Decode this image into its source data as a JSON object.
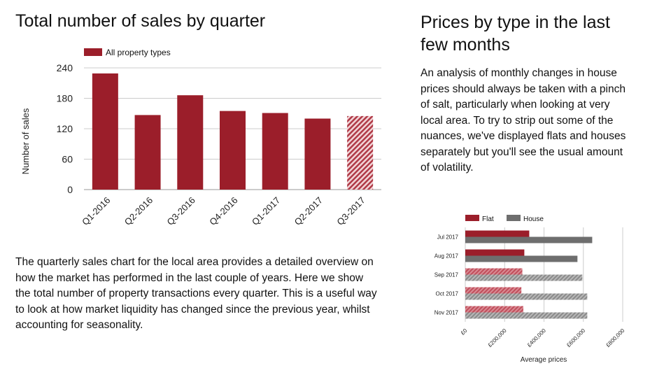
{
  "left_title": "Total number of sales by quarter",
  "right_title": "Prices by type in the last few months",
  "right_paragraph": "An analysis of monthly changes in house prices should always be taken with a pinch of salt, particularly when looking at very local area. To try to strip out some of the nuances, we've displayed flats and houses separately but you'll see the usual amount of volatility.",
  "left_paragraph": "The quarterly sales chart for the local area provides a detailed overview on how the market has performed in the last couple of years. Here we show the total number of property transactions every quarter. This is a useful way to look at how market liquidity has changed since the previous year, whilst accounting for seasonality.",
  "colors": {
    "bar_red": "#9b1e2a",
    "flat_light": "#c85a66",
    "house_dark": "#6e6e6e",
    "house_light": "#9e9e9e",
    "grid": "#cccccc",
    "axis_text": "#222222"
  },
  "chart_data": [
    {
      "type": "bar",
      "title": "",
      "xlabel": "",
      "ylabel": "Number of sales",
      "categories": [
        "Q1-2016",
        "Q2-2016",
        "Q3-2016",
        "Q4-2016",
        "Q1-2017",
        "Q2-2017",
        "Q3-2017"
      ],
      "series": [
        {
          "name": "All property types",
          "values": [
            229,
            147,
            186,
            155,
            151,
            140,
            145
          ]
        }
      ],
      "ylim": [
        0,
        240
      ],
      "yticks": [
        "0",
        "60",
        "120",
        "180",
        "240"
      ],
      "hatched_last": true,
      "grid": true,
      "legend": "top-left"
    },
    {
      "type": "bar",
      "orientation": "horizontal",
      "title": "",
      "xlabel": "Average prices",
      "ylabel": "",
      "categories": [
        "Jul 2017",
        "Aug 2017",
        "Sep 2017",
        "Oct 2017",
        "Nov 2017"
      ],
      "series": [
        {
          "name": "Flat",
          "values": [
            325000,
            300000,
            290000,
            285000,
            295000
          ]
        },
        {
          "name": "House",
          "values": [
            645000,
            570000,
            595000,
            620000,
            620000
          ]
        }
      ],
      "xlim": [
        0,
        800000
      ],
      "xticks": [
        "£0",
        "£200,000",
        "£400,000",
        "£600,000",
        "£800,000"
      ],
      "hatched_from_index": 2,
      "grid": true,
      "legend": "top-left"
    }
  ]
}
